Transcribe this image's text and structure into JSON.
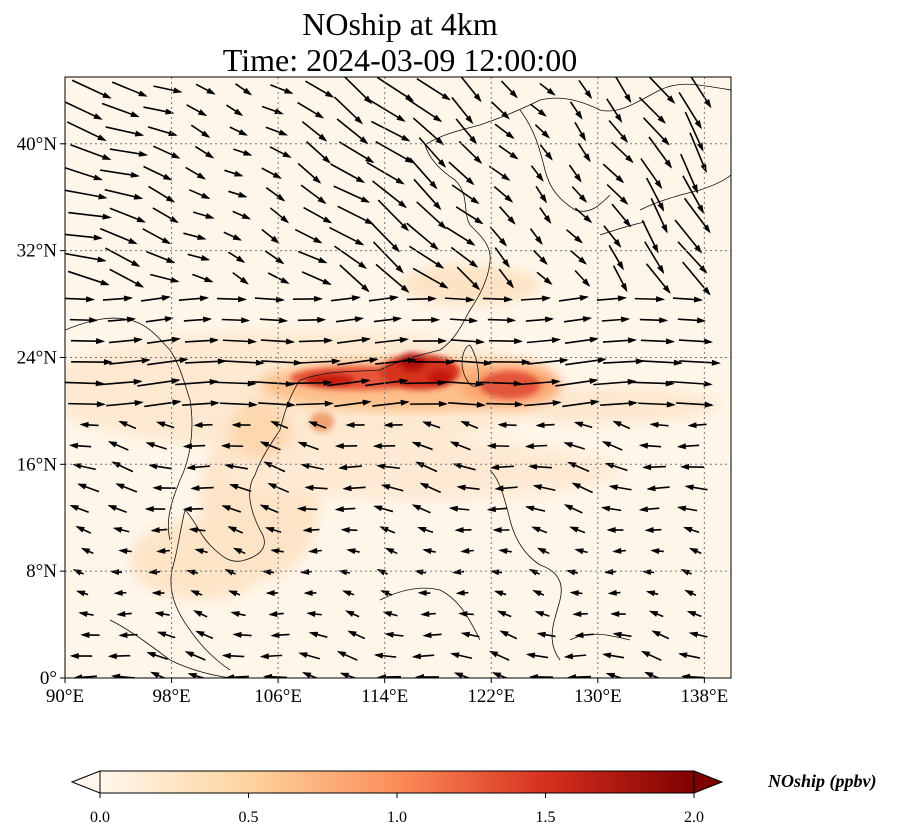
{
  "title_line1": "NOship at 4km",
  "title_line2": "Time: 2024-03-09 12:00:00",
  "map": {
    "lon_range": [
      90,
      140
    ],
    "lat_range": [
      0,
      45
    ],
    "x_ticks": [
      "90°E",
      "98°E",
      "106°E",
      "114°E",
      "122°E",
      "130°E",
      "138°E"
    ],
    "x_tick_values": [
      90,
      98,
      106,
      114,
      122,
      130,
      138
    ],
    "y_ticks": [
      "0°",
      "8°N",
      "16°N",
      "24°N",
      "32°N",
      "40°N"
    ],
    "y_tick_values": [
      0,
      8,
      16,
      24,
      32,
      40
    ],
    "gridlines": "dotted",
    "field": "NOship",
    "vectors": "wind"
  },
  "colorbar": {
    "label": "NOship (ppbv)",
    "ticks": [
      "0.0",
      "0.5",
      "1.0",
      "1.5",
      "2.0"
    ],
    "range": [
      0.0,
      2.0
    ],
    "colormap": "OrRd",
    "colors": [
      "#fff7ec",
      "#fdd49e",
      "#fc8d59",
      "#d7301f",
      "#7f0000"
    ]
  }
}
